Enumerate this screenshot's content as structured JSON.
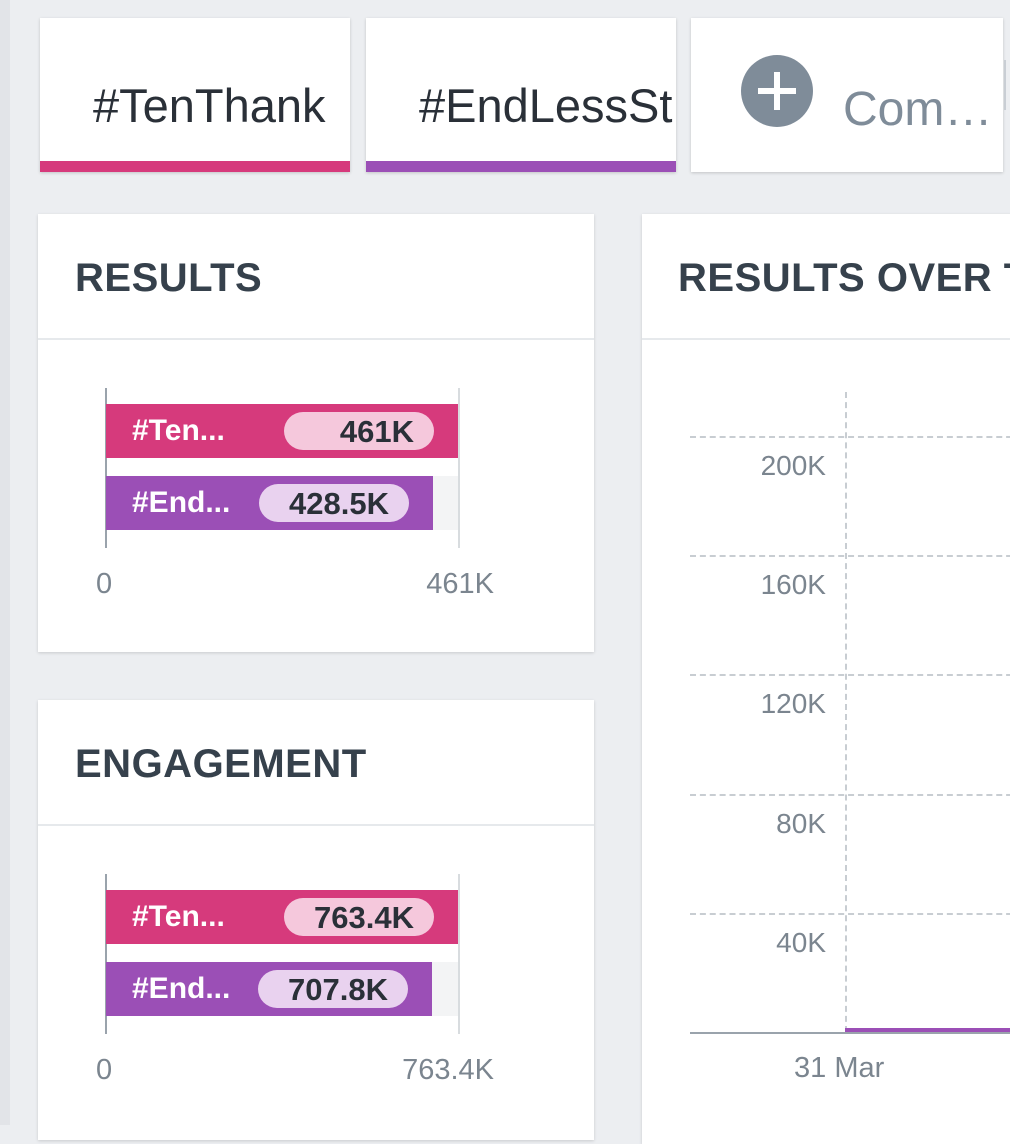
{
  "tabs": [
    {
      "label": "#TenThank",
      "color": "#d63a7c"
    },
    {
      "label": "#EndLessSt",
      "color": "#9b4fb6"
    },
    {
      "label": "Com…",
      "icon": "plus-circle-icon"
    }
  ],
  "results_card": {
    "title": "RESULTS"
  },
  "engagement_card": {
    "title": "ENGAGEMENT"
  },
  "over_time_card": {
    "title": "RESULTS OVER T"
  },
  "chart_data": [
    {
      "type": "bar",
      "orientation": "horizontal",
      "title": "RESULTS",
      "categories": [
        "#Ten...",
        "#End..."
      ],
      "values": [
        461000,
        428500
      ],
      "value_labels": [
        "461K",
        "428.5K"
      ],
      "colors": [
        "#d63a7c",
        "#9b4fb6"
      ],
      "pill_colors": [
        "#f5c8dc",
        "#e9d2ef"
      ],
      "xlim": [
        0,
        461000
      ],
      "tick_labels": [
        "0",
        "461K"
      ]
    },
    {
      "type": "bar",
      "orientation": "horizontal",
      "title": "ENGAGEMENT",
      "categories": [
        "#Ten...",
        "#End..."
      ],
      "values": [
        763400,
        707800
      ],
      "value_labels": [
        "763.4K",
        "707.8K"
      ],
      "colors": [
        "#d63a7c",
        "#9b4fb6"
      ],
      "pill_colors": [
        "#f5c8dc",
        "#e9d2ef"
      ],
      "xlim": [
        0,
        763400
      ],
      "tick_labels": [
        "0",
        "763.4K"
      ]
    },
    {
      "type": "line",
      "title": "RESULTS OVER T",
      "y_ticks": [
        "200K",
        "160K",
        "120K",
        "80K",
        "40K"
      ],
      "x_ticks": [
        "31 Mar"
      ],
      "ylim": [
        0,
        200000
      ],
      "grid": true,
      "series": [
        {
          "color": "#9b4fb6",
          "values": [
            0
          ]
        }
      ]
    }
  ]
}
